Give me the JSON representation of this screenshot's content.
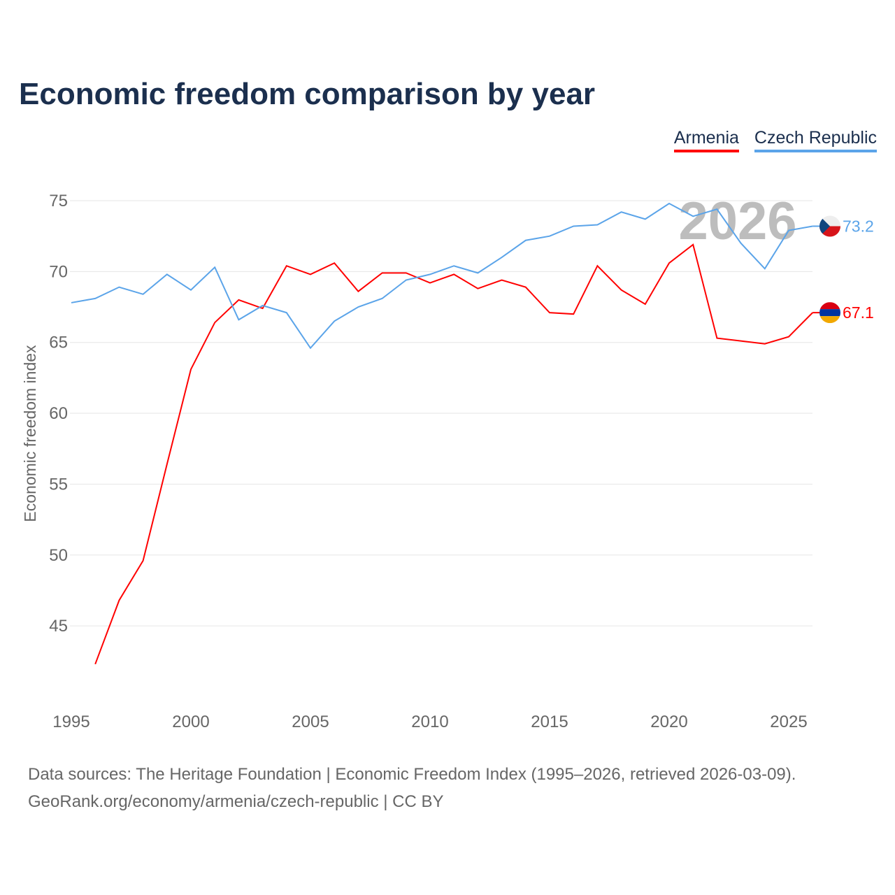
{
  "chart_data": {
    "type": "line",
    "title": "Economic freedom comparison by year",
    "ylabel": "Economic freedom index",
    "xlabel": "",
    "xlim": [
      1995,
      2026
    ],
    "ylim": [
      40,
      76.5
    ],
    "yticks": [
      45,
      50,
      55,
      60,
      65,
      70,
      75
    ],
    "xticks": [
      1995,
      2000,
      2005,
      2010,
      2015,
      2020,
      2025
    ],
    "grid": true,
    "legend_placement": "top-right",
    "watermark_year": "2026",
    "series": [
      {
        "name": "Armenia",
        "color": "#ff0000",
        "x": [
          1996,
          1997,
          1998,
          1999,
          2000,
          2001,
          2002,
          2003,
          2004,
          2005,
          2006,
          2007,
          2008,
          2009,
          2010,
          2011,
          2012,
          2013,
          2014,
          2015,
          2016,
          2017,
          2018,
          2019,
          2020,
          2021,
          2022,
          2023,
          2024,
          2025,
          2026
        ],
        "values": [
          42.3,
          46.8,
          49.6,
          56.4,
          63.1,
          66.4,
          68.0,
          67.4,
          70.4,
          69.8,
          70.6,
          68.6,
          69.9,
          69.9,
          69.2,
          69.8,
          68.8,
          69.4,
          68.9,
          67.1,
          67.0,
          70.4,
          68.7,
          67.7,
          70.6,
          71.9,
          65.3,
          65.1,
          64.9,
          65.4,
          67.1
        ],
        "end_label": "67.1"
      },
      {
        "name": "Czech Republic",
        "color": "#5ba4e9",
        "x": [
          1995,
          1996,
          1997,
          1998,
          1999,
          2000,
          2001,
          2002,
          2003,
          2004,
          2005,
          2006,
          2007,
          2008,
          2009,
          2010,
          2011,
          2012,
          2013,
          2014,
          2015,
          2016,
          2017,
          2018,
          2019,
          2020,
          2021,
          2022,
          2023,
          2024,
          2025,
          2026
        ],
        "values": [
          67.8,
          68.1,
          68.9,
          68.4,
          69.8,
          68.7,
          70.3,
          66.6,
          67.6,
          67.1,
          64.6,
          66.5,
          67.5,
          68.1,
          69.4,
          69.8,
          70.4,
          69.9,
          71.0,
          72.2,
          72.5,
          73.2,
          73.3,
          74.2,
          73.7,
          74.8,
          73.9,
          74.4,
          72.0,
          70.2,
          72.9,
          73.2
        ],
        "end_label": "73.2"
      }
    ]
  },
  "source": {
    "line1": "Data sources: The Heritage Foundation | Economic Freedom Index (1995–2026, retrieved 2026-03-09).",
    "line2": "GeoRank.org/economy/armenia/czech-republic | CC BY"
  }
}
